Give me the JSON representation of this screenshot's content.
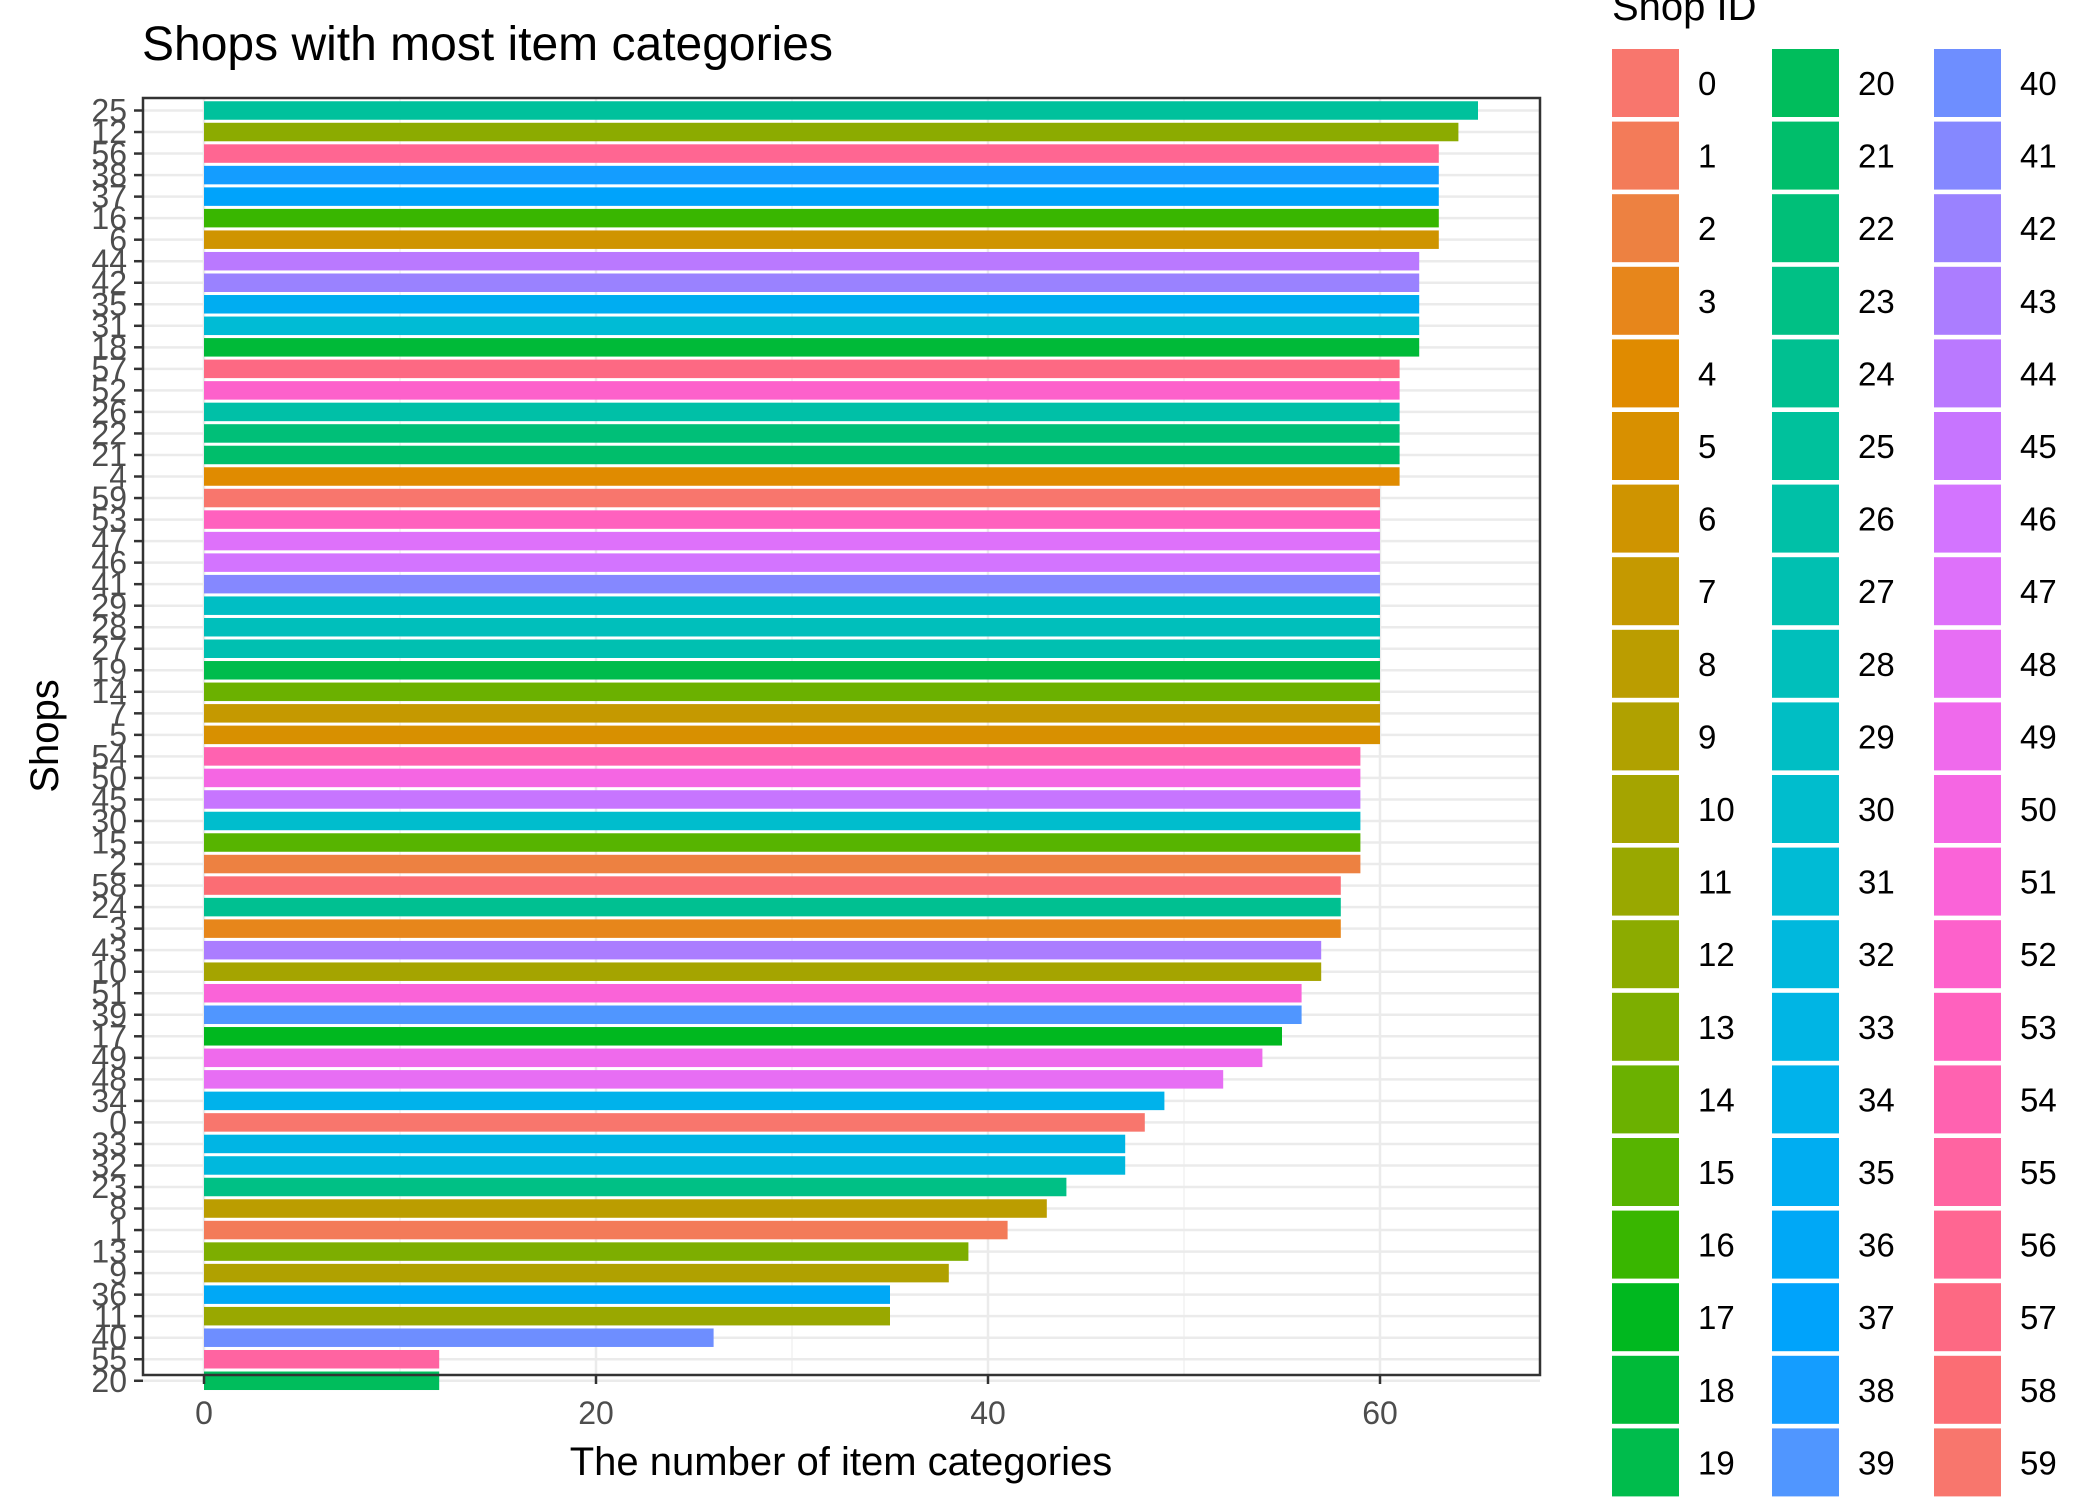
{
  "chart_data": {
    "type": "bar",
    "orientation": "horizontal",
    "title": "Shops with most item categories",
    "xlabel": "The number of item categories",
    "ylabel": "Shops",
    "xlim": [
      0,
      68
    ],
    "x_ticks": [
      "0",
      "20",
      "40",
      "60"
    ],
    "x_tick_values": [
      0,
      20,
      40,
      60
    ],
    "grid": true,
    "legend_title": "Shop ID",
    "legend_position": "right",
    "categories": [
      "25",
      "12",
      "56",
      "38",
      "37",
      "16",
      "6",
      "44",
      "42",
      "35",
      "31",
      "18",
      "57",
      "52",
      "26",
      "22",
      "21",
      "4",
      "59",
      "53",
      "47",
      "46",
      "41",
      "29",
      "28",
      "27",
      "19",
      "14",
      "7",
      "5",
      "54",
      "50",
      "45",
      "30",
      "15",
      "2",
      "58",
      "24",
      "3",
      "43",
      "10",
      "51",
      "39",
      "17",
      "49",
      "48",
      "34",
      "0",
      "33",
      "32",
      "23",
      "8",
      "1",
      "13",
      "9",
      "36",
      "11",
      "40",
      "55",
      "20"
    ],
    "values": [
      65,
      64,
      63,
      63,
      63,
      63,
      63,
      62,
      62,
      62,
      62,
      62,
      61,
      61,
      61,
      61,
      61,
      61,
      60,
      60,
      60,
      60,
      60,
      60,
      60,
      60,
      60,
      60,
      60,
      60,
      59,
      59,
      59,
      59,
      59,
      59,
      58,
      58,
      58,
      57,
      57,
      56,
      56,
      55,
      54,
      52,
      49,
      48,
      47,
      47,
      44,
      43,
      41,
      39,
      38,
      35,
      35,
      26,
      12,
      12
    ],
    "legend_entries": [
      "0",
      "1",
      "2",
      "3",
      "4",
      "5",
      "6",
      "7",
      "8",
      "9",
      "10",
      "11",
      "12",
      "13",
      "14",
      "15",
      "16",
      "17",
      "18",
      "19",
      "20",
      "21",
      "22",
      "23",
      "24",
      "25",
      "26",
      "27",
      "28",
      "29",
      "30",
      "31",
      "32",
      "33",
      "34",
      "35",
      "36",
      "37",
      "38",
      "39",
      "40",
      "41",
      "42",
      "43",
      "44",
      "45",
      "46",
      "47",
      "48",
      "49",
      "50",
      "51",
      "52",
      "53",
      "54",
      "55",
      "56",
      "57",
      "58",
      "59"
    ],
    "colors": [
      "#F8766D",
      "#F37B59",
      "#ED8141",
      "#E7861B",
      "#E08B00",
      "#D89000",
      "#CF9400",
      "#C59900",
      "#BB9D00",
      "#B0A100",
      "#A5A400",
      "#99A800",
      "#8CAB00",
      "#7DAE00",
      "#6BB100",
      "#57B400",
      "#39B600",
      "#00B81F",
      "#00BA38",
      "#00BC4C",
      "#00BD5C",
      "#00BE6B",
      "#00BF78",
      "#00C085",
      "#00C091",
      "#00C19C",
      "#00C0A7",
      "#00C0B1",
      "#00BFBB",
      "#00BEC4",
      "#00BDCD",
      "#00BBD5",
      "#00B8DD",
      "#00B5E4",
      "#00B2EB",
      "#00ADF1",
      "#00A8F6",
      "#00A3FB",
      "#149DFF",
      "#5096FF",
      "#6E8EFF",
      "#8588FF",
      "#9A82FF",
      "#AB7DFF",
      "#BA79FF",
      "#C775FF",
      "#D374FF",
      "#DE71FA",
      "#E76EF4",
      "#EF6AEC",
      "#F566E3",
      "#FA63D8",
      "#FD61CB",
      "#FF61BE",
      "#FF62B0",
      "#FF64A1",
      "#FF6692",
      "#FD6983",
      "#FB6D74",
      "#F8766D"
    ]
  }
}
